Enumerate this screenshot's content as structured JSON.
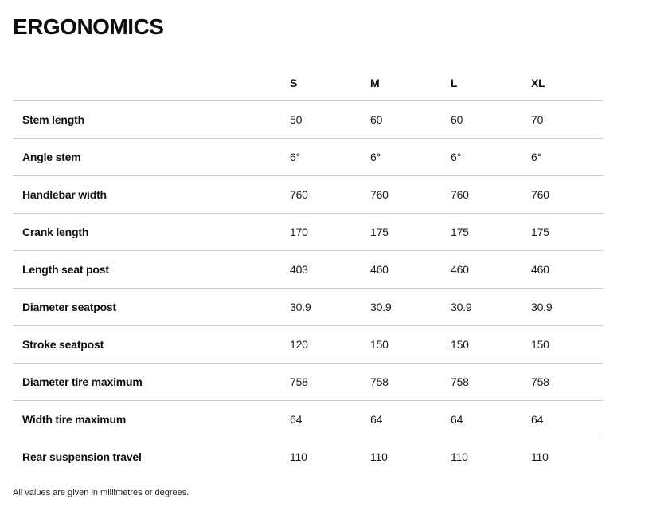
{
  "page": {
    "title": "ERGONOMICS",
    "footnote": "All values are given in millimetres or degrees."
  },
  "theme": {
    "text_color": "#111111",
    "line_color": "#cccccc",
    "background": "#ffffff"
  },
  "table": {
    "columns": [
      "S",
      "M",
      "L",
      "XL"
    ],
    "rows": [
      {
        "label": "Stem length",
        "values": [
          "50",
          "60",
          "60",
          "70"
        ]
      },
      {
        "label": "Angle stem",
        "values": [
          "6°",
          "6°",
          "6°",
          "6°"
        ]
      },
      {
        "label": "Handlebar width",
        "values": [
          "760",
          "760",
          "760",
          "760"
        ]
      },
      {
        "label": "Crank length",
        "values": [
          "170",
          "175",
          "175",
          "175"
        ]
      },
      {
        "label": "Length seat post",
        "values": [
          "403",
          "460",
          "460",
          "460"
        ]
      },
      {
        "label": "Diameter seatpost",
        "values": [
          "30.9",
          "30.9",
          "30.9",
          "30.9"
        ]
      },
      {
        "label": "Stroke seatpost",
        "values": [
          "120",
          "150",
          "150",
          "150"
        ]
      },
      {
        "label": "Diameter tire maximum",
        "values": [
          "758",
          "758",
          "758",
          "758"
        ]
      },
      {
        "label": "Width tire maximum",
        "values": [
          "64",
          "64",
          "64",
          "64"
        ]
      },
      {
        "label": "Rear suspension travel",
        "values": [
          "110",
          "110",
          "110",
          "110"
        ]
      }
    ]
  }
}
